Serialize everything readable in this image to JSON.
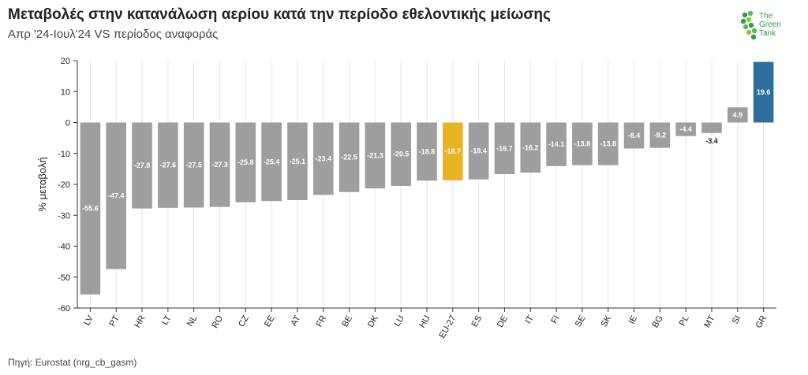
{
  "header": {
    "title": "Μεταβολές στην κατανάλωση αερίου κατά την περίοδο εθελοντικής μείωσης",
    "subtitle": "Απρ '24-Ιουλ'24 VS περίοδος αναφοράς"
  },
  "logo": {
    "line1": "The",
    "line2": "Green",
    "line3": "Tank"
  },
  "footer": {
    "source": "Πηγή: Eurostat (nrg_cb_gasm)"
  },
  "colors": {
    "default": "#9e9e9e",
    "eu": "#e8b426",
    "gr": "#2d6e9c"
  },
  "chart_data": {
    "type": "bar",
    "categories": [
      "LV",
      "PT",
      "HR",
      "LT",
      "NL",
      "RO",
      "CZ",
      "EE",
      "AT",
      "FR",
      "BE",
      "DK",
      "LU",
      "HU",
      "EU-27",
      "ES",
      "DE",
      "IT",
      "FI",
      "SE",
      "SK",
      "IE",
      "BG",
      "PL",
      "MT",
      "SI",
      "GR"
    ],
    "values": [
      -55.6,
      -47.4,
      -27.8,
      -27.6,
      -27.5,
      -27.3,
      -25.8,
      -25.4,
      -25.1,
      -23.4,
      -22.5,
      -21.3,
      -20.5,
      -18.8,
      -18.7,
      -18.4,
      -16.7,
      -16.2,
      -14.1,
      -13.8,
      -13.8,
      -8.4,
      -8.2,
      -4.4,
      -3.4,
      4.9,
      19.6
    ],
    "ylabel": "% μεταβολή",
    "ylim": [
      -60,
      20
    ],
    "yticks": [
      20,
      10,
      0,
      -10,
      -20,
      -30,
      -40,
      -50,
      -60
    ],
    "grid": true,
    "highlight": {
      "EU-27": "eu",
      "GR": "gr"
    }
  }
}
